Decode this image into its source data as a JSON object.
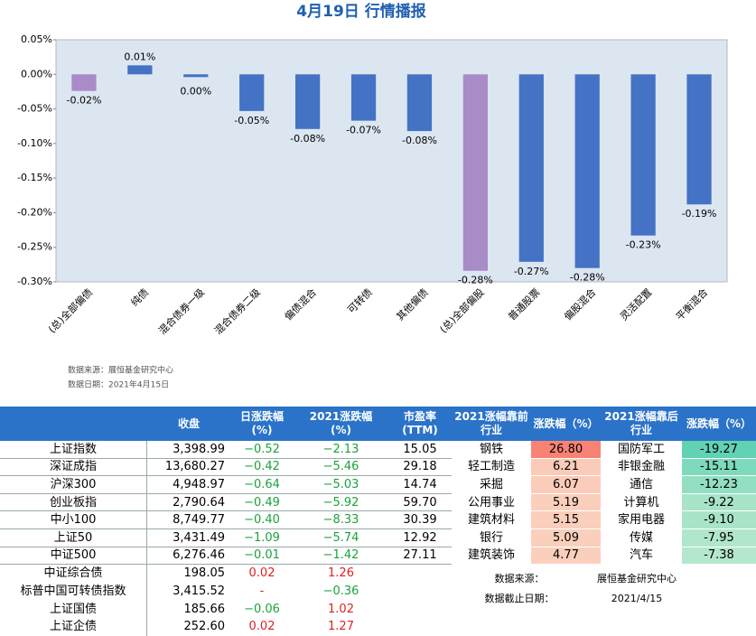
{
  "chart_data": {
    "type": "bar",
    "title": "4月19日  行情播报",
    "categories": [
      "(总)全部偏债",
      "纯债",
      "混合债券一级",
      "混合债券二级",
      "偏债混合",
      "可转债",
      "其他偏债",
      "(总)全部偏股",
      "普通股票",
      "偏股混合",
      "灵活配置",
      "平衡混合"
    ],
    "values": [
      -0.024,
      0.013,
      -0.004,
      -0.053,
      -0.079,
      -0.067,
      -0.082,
      -0.284,
      -0.271,
      -0.28,
      -0.233,
      -0.188
    ],
    "value_labels": [
      "-0.02%",
      "0.01%",
      "0.00%",
      "-0.05%",
      "-0.08%",
      "-0.07%",
      "-0.08%",
      "-0.28%",
      "-0.27%",
      "-0.28%",
      "-0.23%",
      "-0.19%"
    ],
    "colors": [
      "#a98bc8",
      "#4472c4",
      "#4472c4",
      "#4472c4",
      "#4472c4",
      "#4472c4",
      "#4472c4",
      "#a98bc8",
      "#4472c4",
      "#4472c4",
      "#4472c4",
      "#4472c4"
    ],
    "ylim": [
      -0.3,
      0.05
    ],
    "yticks": [
      {
        "value": 0.05,
        "label": "0.05%"
      },
      {
        "value": 0,
        "label": "0.00%"
      },
      {
        "value": -0.05,
        "label": "-0.05%"
      },
      {
        "value": -0.1,
        "label": "-0.10%"
      },
      {
        "value": -0.15,
        "label": "-0.15%"
      },
      {
        "value": -0.2,
        "label": "-0.20%"
      },
      {
        "value": -0.25,
        "label": "-0.25%"
      },
      {
        "value": -0.3,
        "label": "-0.30%"
      }
    ],
    "grid": false,
    "notes": [
      "数据来源：展恒基金研究中心",
      "数据日期：2021年4月15日"
    ]
  },
  "market_table": {
    "header": [
      "收盘",
      "日涨跌幅\n(%)",
      "2021涨跌幅\n(%)",
      "市盈率\n(TTM)"
    ],
    "rows": [
      [
        "上证指数",
        "3,398.99",
        "−0.52",
        "−2.13",
        "15.05"
      ],
      [
        "深证成指",
        "13,680.27",
        "−0.42",
        "−5.46",
        "29.18"
      ],
      [
        "沪深300",
        "4,948.97",
        "−0.64",
        "−5.03",
        "14.74"
      ],
      [
        "创业板指",
        "2,790.64",
        "−0.49",
        "−5.92",
        "59.70"
      ],
      [
        "中小100",
        "8,749.77",
        "−0.40",
        "−8.33",
        "30.39"
      ],
      [
        "上证50",
        "3,431.49",
        "−1.09",
        "−5.74",
        "12.92"
      ],
      [
        "中证500",
        "6,276.46",
        "−0.01",
        "−1.42",
        "27.11"
      ],
      [
        "中证综合债",
        "198.05",
        "0.02",
        "1.26"
      ],
      [
        "标普中国可转债指数",
        "3,415.52",
        "-",
        "−0.36"
      ],
      [
        "上证国债",
        "185.66",
        "−0.06",
        "1.02"
      ],
      [
        "上证企债",
        "252.60",
        "0.02",
        "1.27"
      ]
    ]
  },
  "industry_table": {
    "header": [
      "2021涨幅靠前\n行业",
      "涨跌幅（%）",
      "2021涨幅靠后\n行业",
      "涨跌幅（%）"
    ],
    "rows": [
      [
        "钢铁",
        "26.80",
        "国防军工",
        "-19.27"
      ],
      [
        "轻工制造",
        "6.21",
        "非银金融",
        "-15.11"
      ],
      [
        "采掘",
        "6.07",
        "通信",
        "-12.23"
      ],
      [
        "公用事业",
        "5.19",
        "计算机",
        "-9.22"
      ],
      [
        "建筑材料",
        "5.15",
        "家用电器",
        "-9.10"
      ],
      [
        "银行",
        "5.09",
        "传媒",
        "-7.95"
      ],
      [
        "建筑装饰",
        "4.77",
        "汽车",
        "-7.38"
      ]
    ],
    "source": [
      [
        "数据来源：",
        "展恒基金研究中心"
      ],
      [
        "数据截止日期：",
        "2021/4/15"
      ]
    ]
  }
}
